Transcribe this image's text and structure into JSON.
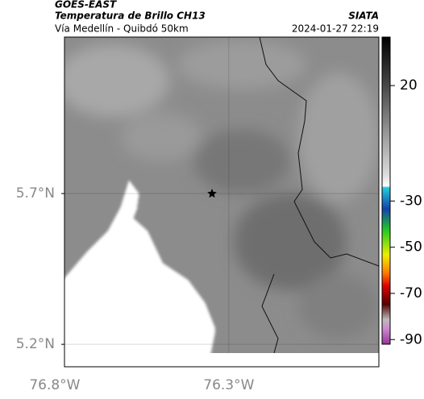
{
  "header": {
    "satellite": "GOES-EAST",
    "product": "Temperatura de Brillo CH13",
    "region": "Vía Medellín - Quibdó 50km",
    "source": "SIATA",
    "datetime": "2024-01-27 22:19"
  },
  "map": {
    "latlim": [
      5.171,
      6.219
    ],
    "lonlim": [
      -76.772,
      -75.869
    ],
    "latticks": [
      {
        "value": 5.7,
        "label": "5.7°N"
      },
      {
        "value": 5.2,
        "label": "5.2°N"
      }
    ],
    "lonticks": [
      {
        "value": -76.8,
        "label": "76.8°W"
      },
      {
        "value": -76.3,
        "label": "76.3°W"
      }
    ]
  },
  "colorbar": {
    "lim": [
      -92,
      41
    ],
    "ticks": [
      20,
      -30,
      -50,
      -70,
      -90
    ]
  }
}
